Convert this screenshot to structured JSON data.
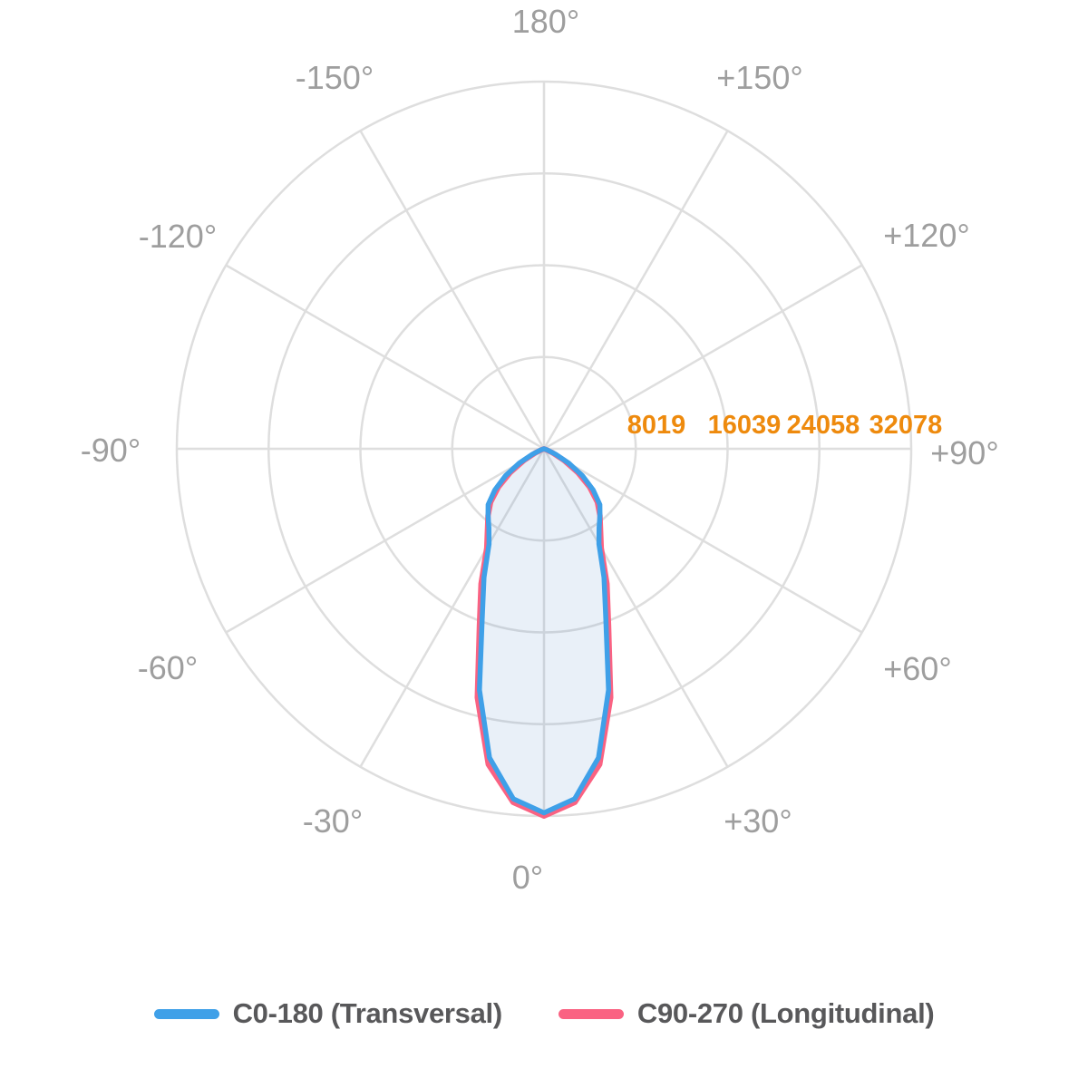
{
  "chart_data": {
    "type": "line",
    "subtype": "polar-photometric-distribution",
    "title": "",
    "angle_unit": "degrees",
    "angle_convention": "0 deg at bottom (beam axis), 180 deg at top, negative angles left, positive angles right",
    "angles_deg": [
      -90,
      -85,
      -80,
      -75,
      -70,
      -65,
      -60,
      -55,
      -50,
      -45,
      -40,
      -35,
      -30,
      -25,
      -20,
      -15,
      -10,
      -5,
      0,
      5,
      10,
      15,
      20,
      25,
      30,
      35,
      40,
      45,
      50,
      55,
      60,
      65,
      70,
      75,
      80,
      85,
      90
    ],
    "series": [
      {
        "name": "C0-180 (Transversal)",
        "color": "#3FA0E8",
        "fill": "rgba(70,130,200,0.12)",
        "stroke_width": 5.5,
        "values": [
          0,
          0,
          0,
          0,
          300,
          1100,
          2500,
          4100,
          5600,
          6900,
          7600,
          8400,
          9600,
          12400,
          15800,
          21800,
          27400,
          30700,
          31800,
          30700,
          27400,
          21800,
          15800,
          12400,
          9600,
          8400,
          7600,
          6900,
          5600,
          4100,
          2500,
          1100,
          300,
          0,
          0,
          0,
          0
        ]
      },
      {
        "name": "C90-270 (Longitudinal)",
        "color": "#FA6282",
        "fill": "none",
        "stroke_width": 6,
        "values": [
          0,
          0,
          0,
          0,
          200,
          800,
          2000,
          3600,
          5200,
          6600,
          7600,
          8600,
          10000,
          13000,
          16500,
          22500,
          28000,
          31000,
          32078,
          31000,
          28000,
          22500,
          16500,
          13000,
          10000,
          8600,
          7600,
          6600,
          5200,
          3600,
          2000,
          800,
          200,
          0,
          0,
          0,
          0
        ]
      }
    ],
    "radial_ticks": [
      8019,
      16039,
      24058,
      32078
    ],
    "radial_max": 32078,
    "radial_tick_labels": [
      "8019",
      "16039",
      "24058",
      "32078"
    ],
    "angle_tick_labels": [
      "180°",
      "-150°",
      "+150°",
      "-120°",
      "+120°",
      "-90°",
      "+90°",
      "-60°",
      "+60°",
      "-30°",
      "+30°",
      "0°"
    ],
    "grid": {
      "show": true,
      "spoke_step_deg": 30,
      "rings": 4,
      "color": "#DEDEDE"
    },
    "legend_position": "bottom"
  },
  "legend": {
    "items": [
      {
        "label": "C0-180 (Transversal)",
        "color": "#3FA0E8"
      },
      {
        "label": "C90-270 (Longitudinal)",
        "color": "#FA6282"
      }
    ]
  },
  "colors": {
    "background": "#FFFFFF",
    "grid": "#DEDEDE",
    "angle_label": "#9E9E9E",
    "radial_tick_label": "#EE8A0D",
    "legend_text": "#58585A",
    "c0_180": "#3FA0E8",
    "c90_270": "#FA6282",
    "beam_fill": "rgba(70,130,200,0.12)"
  }
}
